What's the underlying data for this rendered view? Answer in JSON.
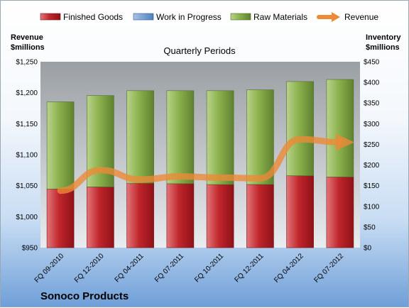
{
  "chart_data": {
    "type": "bar",
    "title": "Quarterly Periods",
    "footer": "Sonoco Products",
    "categories": [
      "FQ 09-2010",
      "FQ 12-2010",
      "FQ 04-2011",
      "FQ 07-2011",
      "FQ 10-2011",
      "FQ 12-2011",
      "FQ 04-2012",
      "FQ 07-2012"
    ],
    "left_axis": {
      "label_line1": "Revenue",
      "label_line2": "$millions",
      "range": [
        950,
        1250
      ],
      "ticks": [
        "$950",
        "$1,000",
        "$1,050",
        "$1,100",
        "$1,150",
        "$1,200",
        "$1,250"
      ],
      "tick_values": [
        950,
        1000,
        1050,
        1100,
        1150,
        1200,
        1250
      ]
    },
    "right_axis": {
      "label_line1": "Inventory",
      "label_line2": "$millions",
      "range": [
        0,
        450
      ],
      "ticks": [
        "$0",
        "$50",
        "$100",
        "$150",
        "$200",
        "$250",
        "$300",
        "$350",
        "$400",
        "$450"
      ],
      "tick_values": [
        0,
        50,
        100,
        150,
        200,
        250,
        300,
        350,
        400,
        450
      ]
    },
    "stacked_series": [
      {
        "name": "Finished Goods",
        "color": "#c0262c",
        "values": [
          142,
          147,
          156,
          155,
          153,
          153,
          174,
          171
        ]
      },
      {
        "name": "Work in Progress",
        "color": "#4f81bd",
        "values": [
          0,
          0,
          0,
          0,
          0,
          0,
          0,
          0
        ]
      },
      {
        "name": "Raw Materials",
        "color": "#8bb14c",
        "values": [
          211,
          221,
          224,
          225,
          227,
          229,
          228,
          236
        ]
      }
    ],
    "line_series": {
      "name": "Revenue",
      "color": "#ec8a37",
      "axis": "left",
      "values": [
        1042,
        1075,
        1060,
        1065,
        1063,
        1062,
        1125,
        1120
      ]
    },
    "legend_position": "top",
    "grid": false
  }
}
